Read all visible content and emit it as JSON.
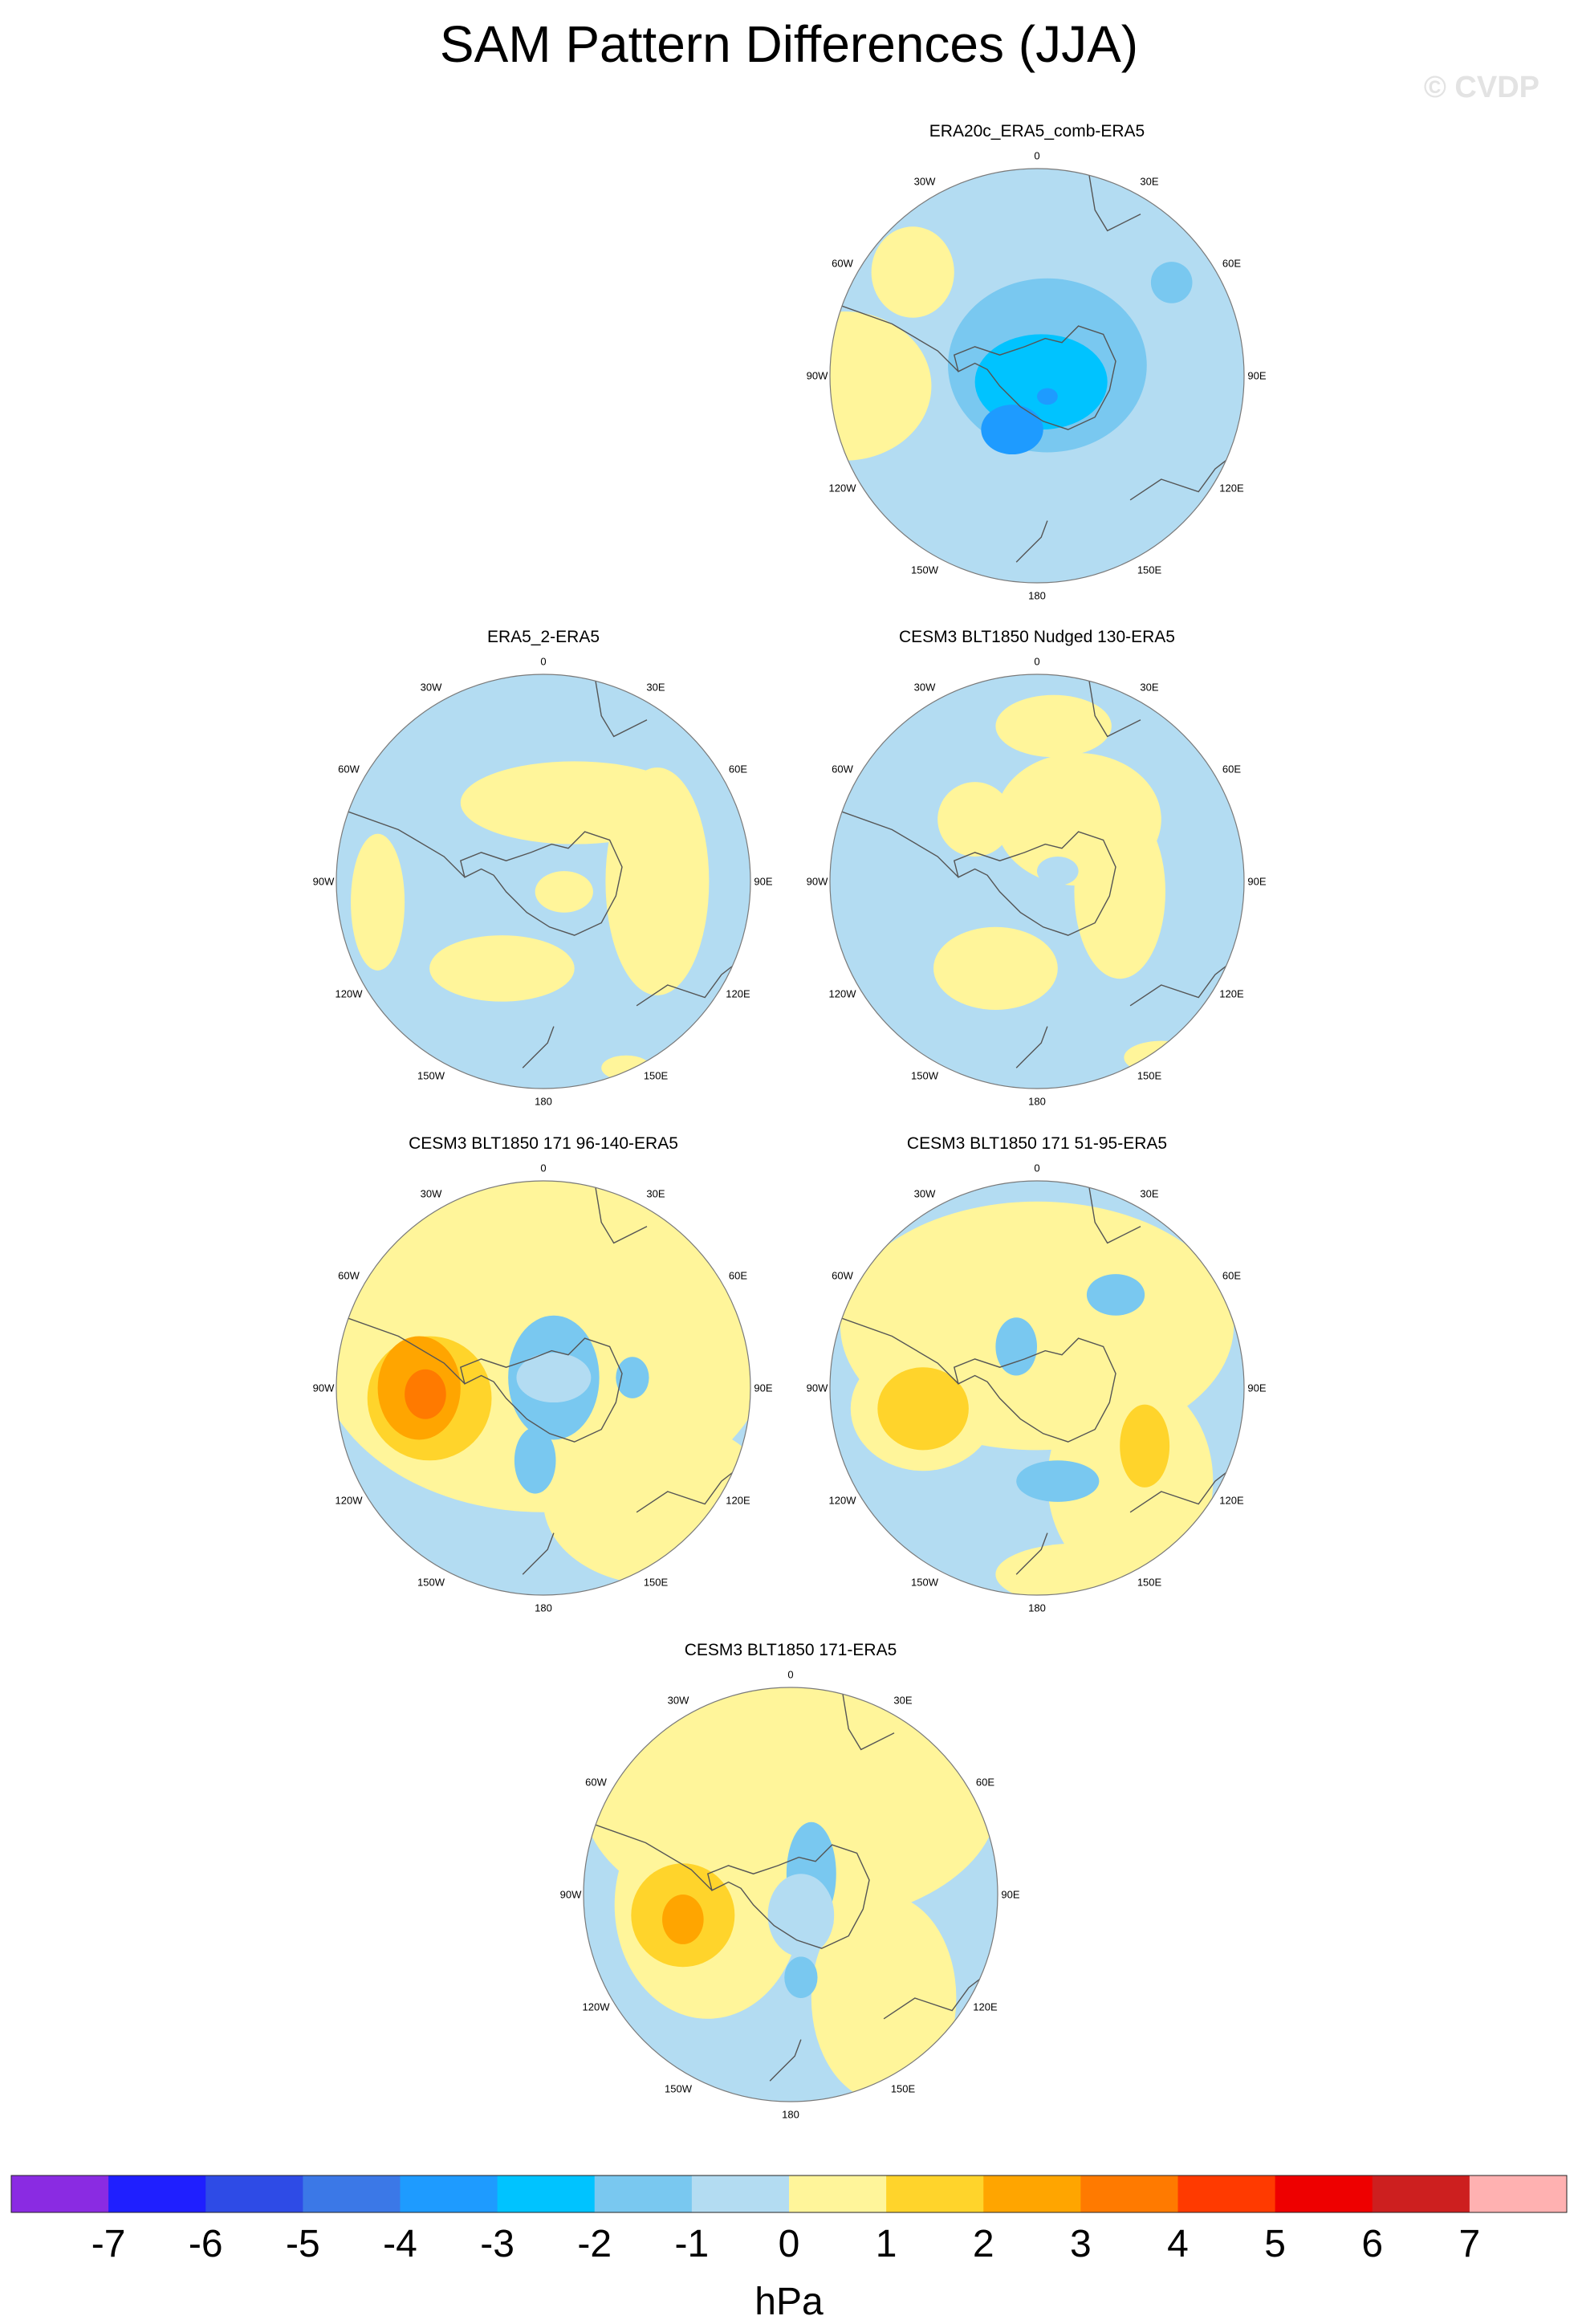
{
  "header": {
    "title": "SAM Pattern Differences (JJA)",
    "watermark": "© CVDP"
  },
  "colors": {
    "ocean": "#b3dcf2",
    "coast": "#555555",
    "levels": [
      "#8a2be2",
      "#1f1fff",
      "#2e4be6",
      "#3b78e7",
      "#1e9bff",
      "#00c3ff",
      "#79c8f0",
      "#b3dcf2",
      "#fff59a",
      "#ffd42b",
      "#ffa500",
      "#ff7a00",
      "#ff3a00",
      "#ee0000",
      "#cd1f1f",
      "#ffb1b1"
    ]
  },
  "longitude_labels": [
    "0",
    "30E",
    "60E",
    "90E",
    "120E",
    "150E",
    "180",
    "150W",
    "120W",
    "90W",
    "60W",
    "30W"
  ],
  "panels": [
    {
      "title": "ERA20c_ERA5_comb-ERA5"
    },
    {
      "title": "ERA5_2-ERA5"
    },
    {
      "title": "CESM3 BLT1850 Nudged 130-ERA5"
    },
    {
      "title": "CESM3 BLT1850 171 96-140-ERA5"
    },
    {
      "title": "CESM3 BLT1850 171 51-95-ERA5"
    },
    {
      "title": "CESM3 BLT1850 171-ERA5"
    }
  ],
  "chart_data": {
    "type": "polar-filled-contour",
    "title": "SAM Pattern Differences (JJA)",
    "projection": "south polar stereographic",
    "variable": "SAM pattern difference",
    "units": "hPa",
    "colorbar": {
      "levels": [
        -7,
        -6,
        -5,
        -4,
        -3,
        -2,
        -1,
        0,
        1,
        2,
        3,
        4,
        5,
        6,
        7
      ],
      "tick_labels": [
        "-7",
        "-6",
        "-5",
        "-4",
        "-3",
        "-2",
        "-1",
        "0",
        "1",
        "2",
        "3",
        "4",
        "5",
        "6",
        "7"
      ],
      "units_label": "hPa"
    },
    "panels": [
      {
        "name": "ERA20c_ERA5_comb-ERA5",
        "min_value": -4,
        "max_value": 1
      },
      {
        "name": "ERA5_2-ERA5",
        "min_value": -1,
        "max_value": 1
      },
      {
        "name": "CESM3 BLT1850 Nudged 130-ERA5",
        "min_value": -1,
        "max_value": 1
      },
      {
        "name": "CESM3 BLT1850 171 96-140-ERA5",
        "min_value": -2,
        "max_value": 4
      },
      {
        "name": "CESM3 BLT1850 171 51-95-ERA5",
        "min_value": -2,
        "max_value": 2
      },
      {
        "name": "CESM3 BLT1850 171-ERA5",
        "min_value": -2,
        "max_value": 3
      }
    ]
  }
}
